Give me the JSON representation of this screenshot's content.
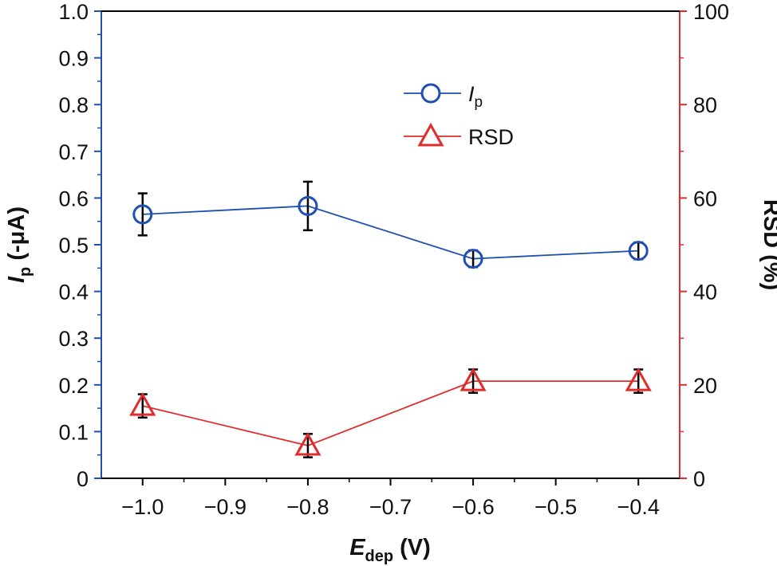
{
  "colors": {
    "ip": "#1f4fb0",
    "rsd": "#e02c2c",
    "error_bar": "#000000",
    "frame": "#000000"
  },
  "chart_data": {
    "type": "line",
    "x": [
      -1.0,
      -0.8,
      -0.6,
      -0.4
    ],
    "xlim": [
      -1.05,
      -0.35
    ],
    "ylim_left": [
      0,
      1.0
    ],
    "ylim_right": [
      0,
      100
    ],
    "x_ticks": [
      "−1.0",
      "−0.9",
      "−0.8",
      "−0.7",
      "−0.6",
      "−0.5",
      "−0.4"
    ],
    "y_left_ticks": [
      "0",
      "0.1",
      "0.2",
      "0.3",
      "0.4",
      "0.5",
      "0.6",
      "0.7",
      "0.8",
      "0.9",
      "1.0"
    ],
    "y_right_ticks": [
      "0",
      "20",
      "40",
      "60",
      "80",
      "100"
    ],
    "xlabel_main": "E",
    "xlabel_sub": "dep",
    "xlabel_unit": " (V)",
    "ylabel_left_main": "I",
    "ylabel_left_sub": "p",
    "ylabel_left_unit": " (-μA)",
    "ylabel_right": "RSD (%)",
    "legend_position": "top-center",
    "series": [
      {
        "name_main": "I",
        "name_sub": "p",
        "axis": "left",
        "marker": "circle",
        "values": [
          0.565,
          0.583,
          0.47,
          0.487
        ],
        "error": [
          0.045,
          0.052,
          0.018,
          0.018
        ]
      },
      {
        "name": "RSD",
        "axis": "right",
        "marker": "triangle",
        "values": [
          15.5,
          7.0,
          20.8,
          20.8
        ],
        "error": [
          2.5,
          2.5,
          2.5,
          2.5
        ]
      }
    ]
  }
}
